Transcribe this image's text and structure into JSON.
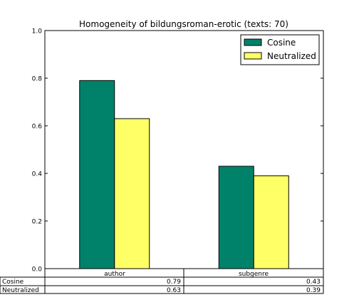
{
  "chart_data": {
    "type": "bar",
    "title": "Homogeneity of bildungsroman-erotic (texts: 70)",
    "categories": [
      "author",
      "subgenre"
    ],
    "ylim": [
      0,
      1.0
    ],
    "yticks": [
      "0.0",
      "0.2",
      "0.4",
      "0.6",
      "0.8",
      "1.0"
    ],
    "grid": false,
    "legend_position": "top-right",
    "series": [
      {
        "name": "Cosine",
        "color": "#00826a",
        "values": [
          0.79,
          0.43
        ],
        "labels": [
          "0.79",
          "0.43"
        ]
      },
      {
        "name": "Neutralized",
        "color": "#ffff66",
        "values": [
          0.63,
          0.39
        ],
        "labels": [
          "0.63",
          "0.39"
        ]
      }
    ]
  }
}
